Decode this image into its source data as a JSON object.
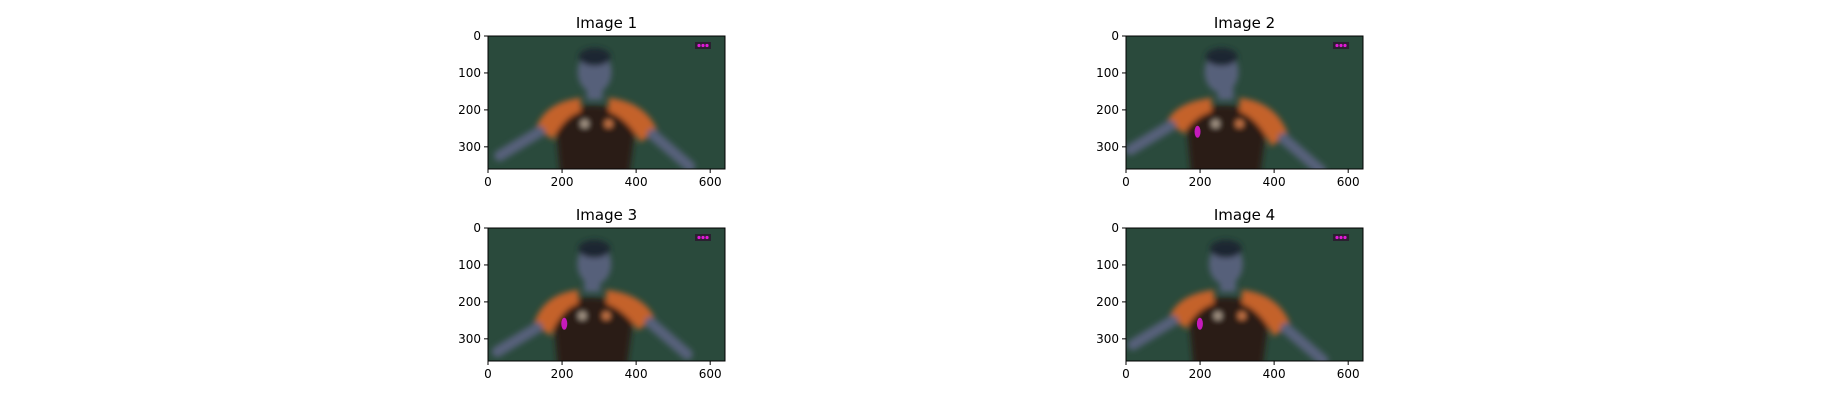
{
  "figure": {
    "background": "#ffffff",
    "field_color": "#2a4a3c",
    "jersey_color": "#c4622a",
    "jersey_dark": "#2b1a14",
    "skin_color": "#56607a",
    "marker_color": "#e01ad8"
  },
  "panels": [
    {
      "title": "Image 1",
      "x_ticks": [
        "0",
        "200",
        "400",
        "600"
      ],
      "y_ticks": [
        "0",
        "100",
        "200",
        "300"
      ],
      "x_tick_values": [
        0,
        200,
        400,
        600
      ],
      "y_tick_values": [
        0,
        100,
        200,
        300
      ],
      "xlim": [
        0,
        640
      ],
      "ylim": [
        0,
        360
      ]
    },
    {
      "title": "Image 2",
      "x_ticks": [
        "0",
        "200",
        "400",
        "600"
      ],
      "y_ticks": [
        "0",
        "100",
        "200",
        "300"
      ],
      "x_tick_values": [
        0,
        200,
        400,
        600
      ],
      "y_tick_values": [
        0,
        100,
        200,
        300
      ],
      "xlim": [
        0,
        640
      ],
      "ylim": [
        0,
        360
      ]
    },
    {
      "title": "Image 3",
      "x_ticks": [
        "0",
        "200",
        "400",
        "600"
      ],
      "y_ticks": [
        "0",
        "100",
        "200",
        "300"
      ],
      "x_tick_values": [
        0,
        200,
        400,
        600
      ],
      "y_tick_values": [
        0,
        100,
        200,
        300
      ],
      "xlim": [
        0,
        640
      ],
      "ylim": [
        0,
        360
      ]
    },
    {
      "title": "Image 4",
      "x_ticks": [
        "0",
        "200",
        "400",
        "600"
      ],
      "y_ticks": [
        "0",
        "100",
        "200",
        "300"
      ],
      "x_tick_values": [
        0,
        200,
        400,
        600
      ],
      "y_tick_values": [
        0,
        100,
        200,
        300
      ],
      "xlim": [
        0,
        640
      ],
      "ylim": [
        0,
        360
      ]
    }
  ]
}
